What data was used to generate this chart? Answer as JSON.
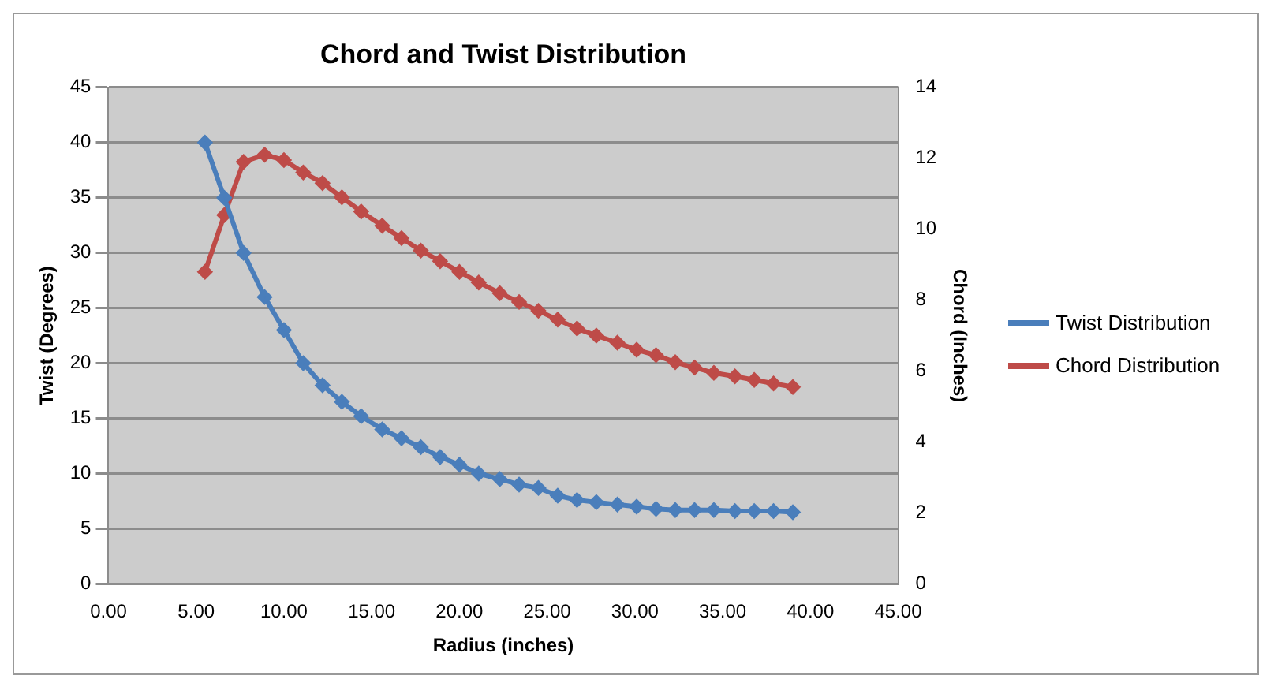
{
  "chart_data": {
    "type": "line",
    "title": "Chord and Twist Distribution",
    "xlabel": "Radius (inches)",
    "ylabel": "Twist (Degrees)",
    "y2label": "Chord (Inches)",
    "x": [
      5.5,
      6.6,
      7.7,
      8.9,
      10.0,
      11.1,
      12.2,
      13.3,
      14.4,
      15.6,
      16.7,
      17.8,
      18.9,
      20.0,
      21.1,
      22.3,
      23.4,
      24.5,
      25.6,
      26.7,
      27.8,
      29.0,
      30.1,
      31.2,
      32.3,
      33.4,
      34.5,
      35.7,
      36.8,
      37.9,
      39.0
    ],
    "series": [
      {
        "name": "Twist Distribution",
        "color": "#4a7ebb",
        "values": [
          40,
          35,
          30,
          26,
          23,
          20,
          18,
          16.5,
          15.2,
          14,
          13.2,
          12.4,
          11.5,
          10.8,
          10,
          9.5,
          9,
          8.7,
          8,
          7.6,
          7.4,
          7.2,
          7.0,
          6.8,
          6.7,
          6.7,
          6.7,
          6.6,
          6.6,
          6.6,
          6.5
        ]
      },
      {
        "name": "Chord Distribution",
        "color": "#be4b48",
        "axis": "y2",
        "values": [
          8.8,
          10.4,
          11.9,
          12.1,
          11.95,
          11.6,
          11.3,
          10.9,
          10.5,
          10.1,
          9.75,
          9.4,
          9.1,
          8.8,
          8.5,
          8.2,
          7.95,
          7.7,
          7.45,
          7.2,
          7.0,
          6.8,
          6.6,
          6.45,
          6.25,
          6.1,
          5.95,
          5.85,
          5.75,
          5.65,
          5.55
        ]
      }
    ],
    "xlim": [
      0,
      45
    ],
    "xticks": [
      {
        "value": 0,
        "label": "0.00"
      },
      {
        "value": 5,
        "label": "5.00"
      },
      {
        "value": 10,
        "label": "10.00"
      },
      {
        "value": 15,
        "label": "15.00"
      },
      {
        "value": 20,
        "label": "20.00"
      },
      {
        "value": 25,
        "label": "25.00"
      },
      {
        "value": 30,
        "label": "30.00"
      },
      {
        "value": 35,
        "label": "35.00"
      },
      {
        "value": 40,
        "label": "40.00"
      },
      {
        "value": 45,
        "label": "45.00"
      }
    ],
    "ylim": [
      0,
      45
    ],
    "yticks": [
      0,
      5,
      10,
      15,
      20,
      25,
      30,
      35,
      40,
      45
    ],
    "y2lim": [
      0,
      14
    ],
    "y2ticks": [
      0,
      2,
      4,
      6,
      8,
      10,
      12,
      14
    ],
    "grid": "y",
    "legend": "right",
    "marker": "diamond",
    "line_style": "solid"
  }
}
